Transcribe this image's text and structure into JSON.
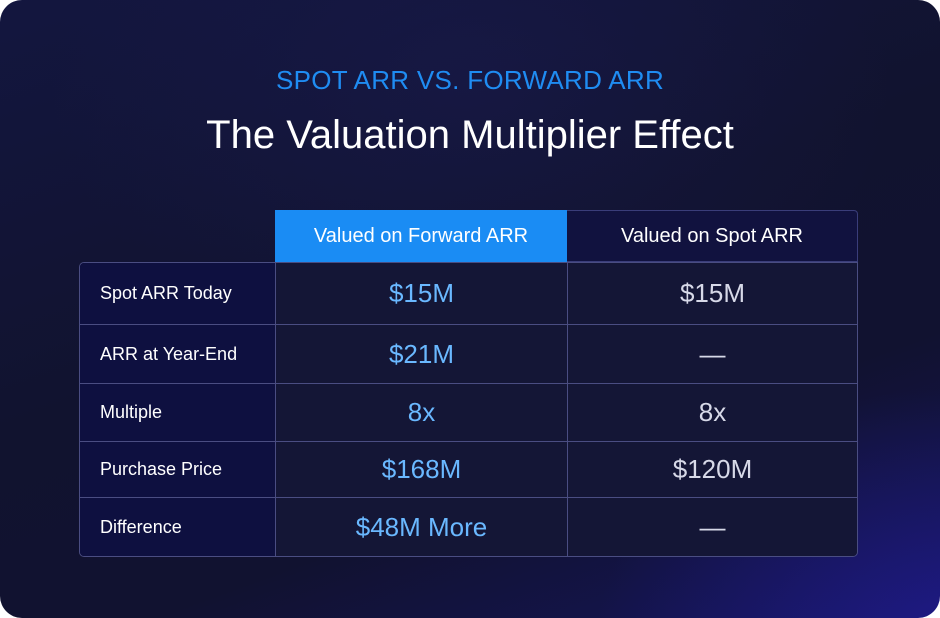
{
  "header": {
    "eyebrow": "SPOT ARR VS. FORWARD ARR",
    "title": "The Valuation Multiplier Effect"
  },
  "table": {
    "columns": [
      "Valued on Forward ARR",
      "Valued on Spot ARR"
    ],
    "rows": [
      {
        "label": "Spot ARR Today",
        "forward": "$15M",
        "spot": "$15M"
      },
      {
        "label": "ARR at Year-End",
        "forward": "$21M",
        "spot": "—"
      },
      {
        "label": "Multiple",
        "forward": "8x",
        "spot": "8x"
      },
      {
        "label": "Purchase Price",
        "forward": "$168M",
        "spot": "$120M"
      },
      {
        "label": "Difference",
        "forward": "$48M More",
        "spot": "—"
      }
    ]
  },
  "colors": {
    "accent": "#1a8cf4",
    "value_highlight": "#6ab8ff",
    "label_background": "#0e1040",
    "cell_background": "#141636"
  }
}
